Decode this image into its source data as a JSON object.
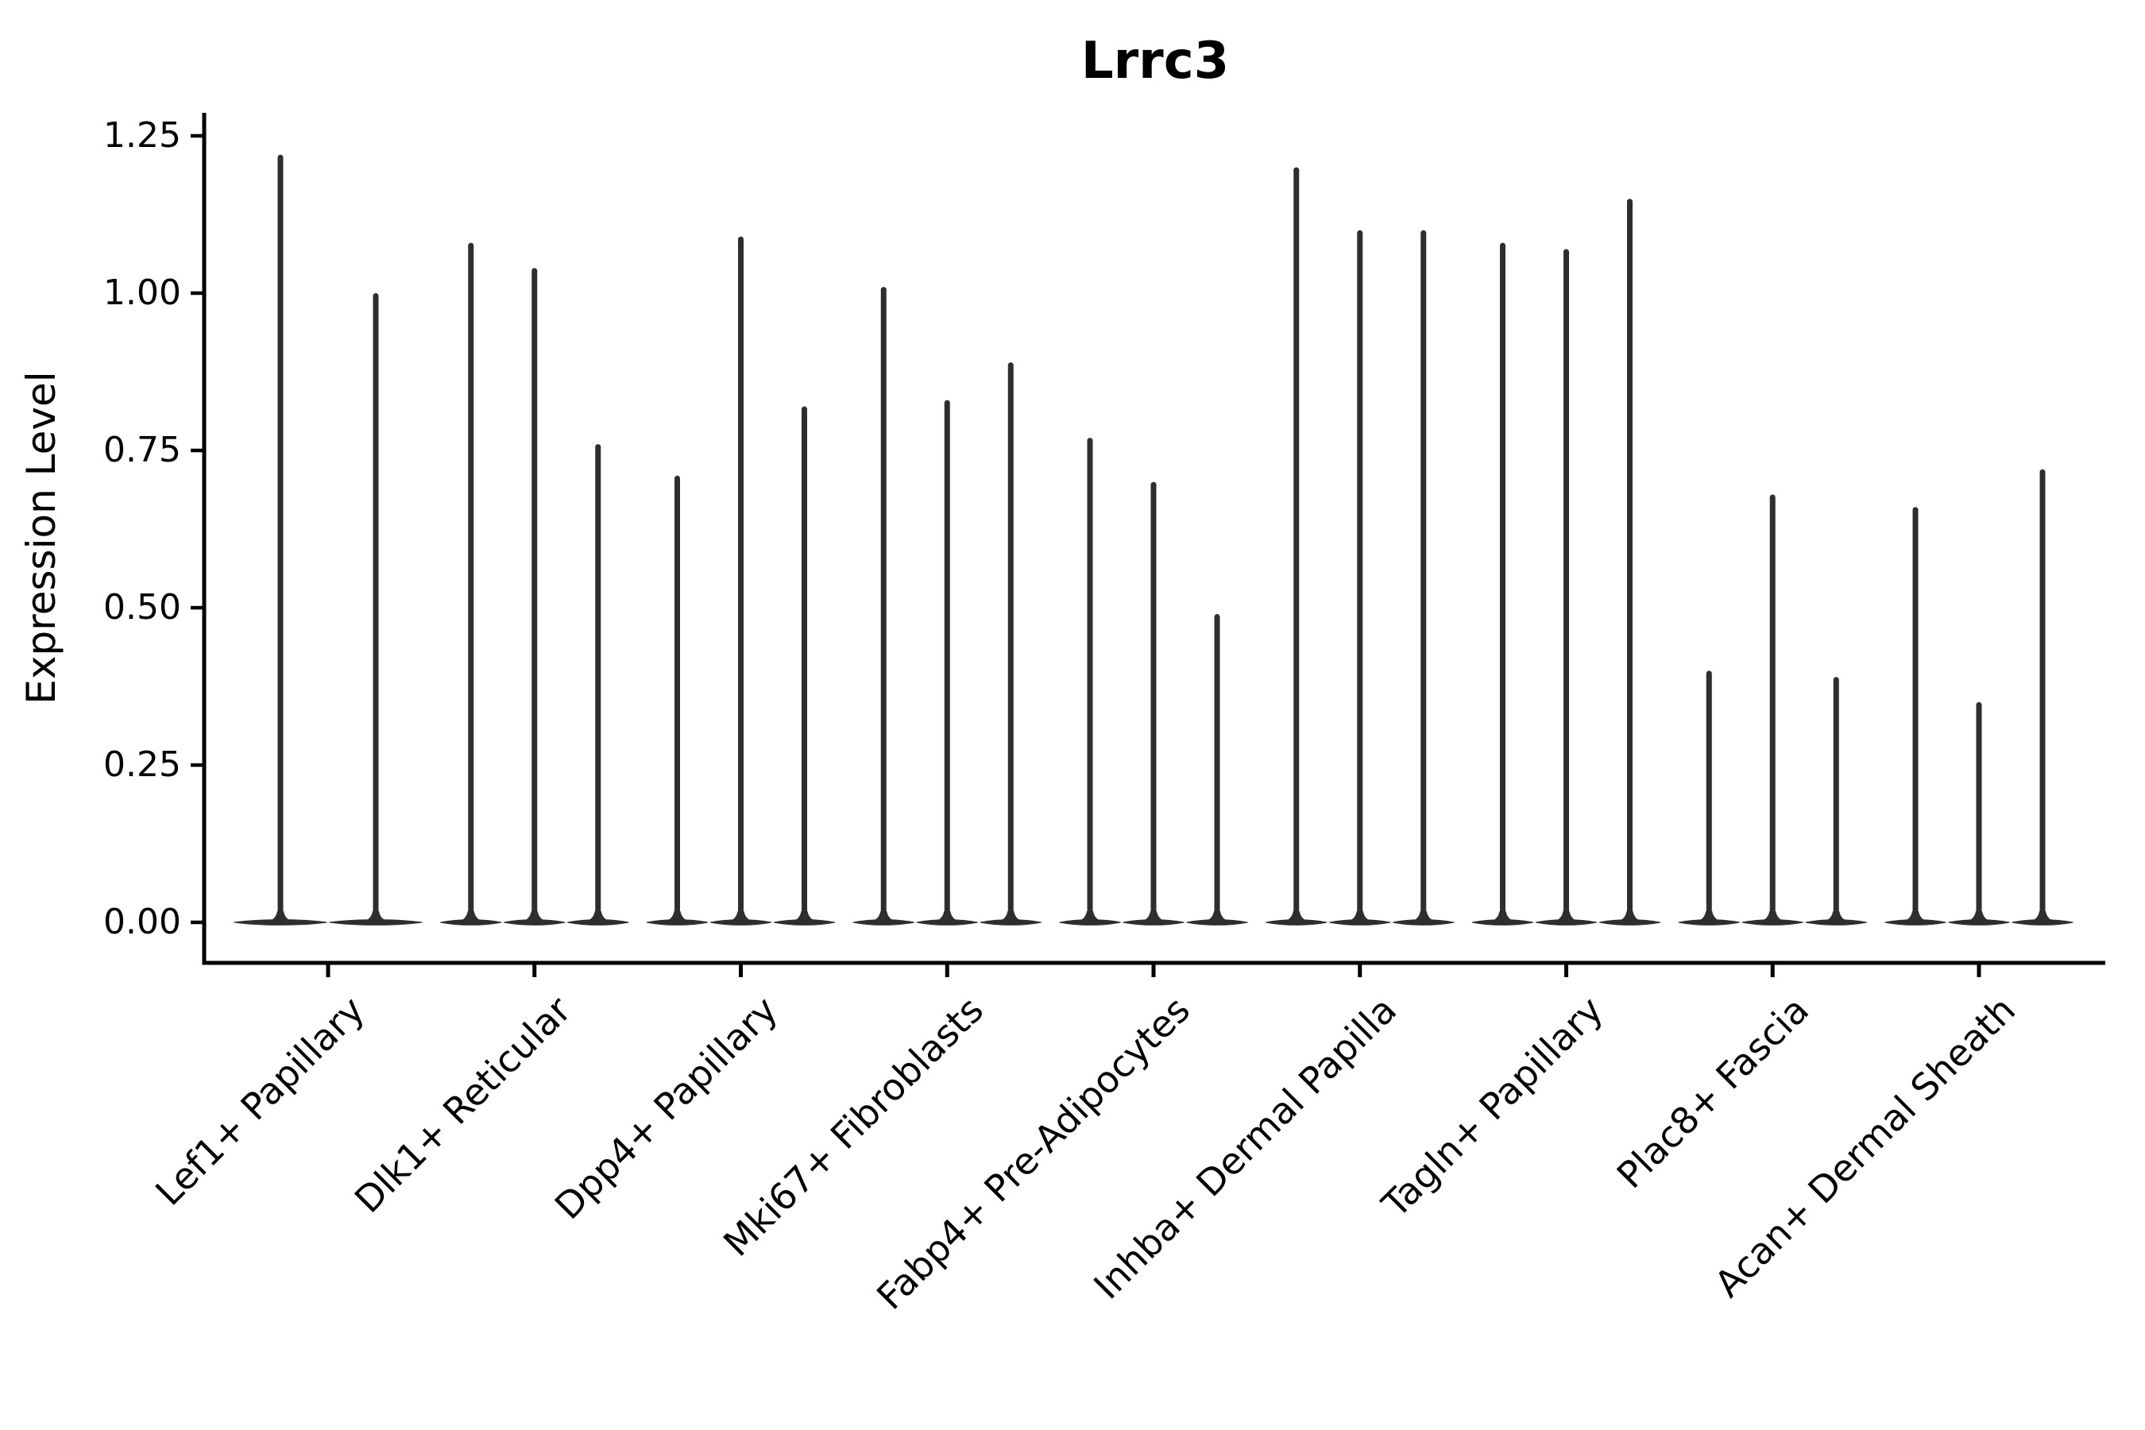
{
  "chart_data": {
    "type": "violin",
    "title": "Lrrc3",
    "ylabel": "Expression Level",
    "xlabel": "",
    "grid": false,
    "legend_position": "none",
    "ylim": [
      -0.06,
      1.28
    ],
    "yticks": [
      {
        "label": "0.00",
        "value": 0.0
      },
      {
        "label": "0.25",
        "value": 0.25
      },
      {
        "label": "0.50",
        "value": 0.5
      },
      {
        "label": "0.75",
        "value": 0.75
      },
      {
        "label": "1.00",
        "value": 1.0
      },
      {
        "label": "1.25",
        "value": 1.25
      }
    ],
    "categories": [
      "Lef1+ Papillary",
      "Dlk1+ Reticular",
      "Dpp4+ Papillary",
      "Mki67+ Fibroblasts",
      "Fabp4+ Pre-Adipocytes",
      "Inhba+ Dermal Papilla",
      "Tagln+ Papillary",
      "Plac8+ Fascia",
      "Acan+ Dermal Sheath"
    ],
    "violins": [
      {
        "category": "Lef1+ Papillary",
        "spike_max_values": [
          1.22,
          1.0
        ]
      },
      {
        "category": "Dlk1+ Reticular",
        "spike_max_values": [
          1.08,
          1.04,
          0.76
        ]
      },
      {
        "category": "Dpp4+ Papillary",
        "spike_max_values": [
          0.71,
          1.09,
          0.82
        ]
      },
      {
        "category": "Mki67+ Fibroblasts",
        "spike_max_values": [
          1.01,
          0.83,
          0.89
        ]
      },
      {
        "category": "Fabp4+ Pre-Adipocytes",
        "spike_max_values": [
          0.77,
          0.7,
          0.49
        ]
      },
      {
        "category": "Inhba+ Dermal Papilla",
        "spike_max_values": [
          1.2,
          1.1,
          1.1
        ]
      },
      {
        "category": "Tagln+ Papillary",
        "spike_max_values": [
          1.08,
          1.07,
          1.15
        ]
      },
      {
        "category": "Plac8+ Fascia",
        "spike_max_values": [
          0.4,
          0.68,
          0.39
        ]
      },
      {
        "category": "Acan+ Dermal Sheath",
        "spike_max_values": [
          0.66,
          0.35,
          0.72
        ]
      }
    ],
    "violin_fill": "#2e2e2e",
    "axis_color": "#000000"
  }
}
